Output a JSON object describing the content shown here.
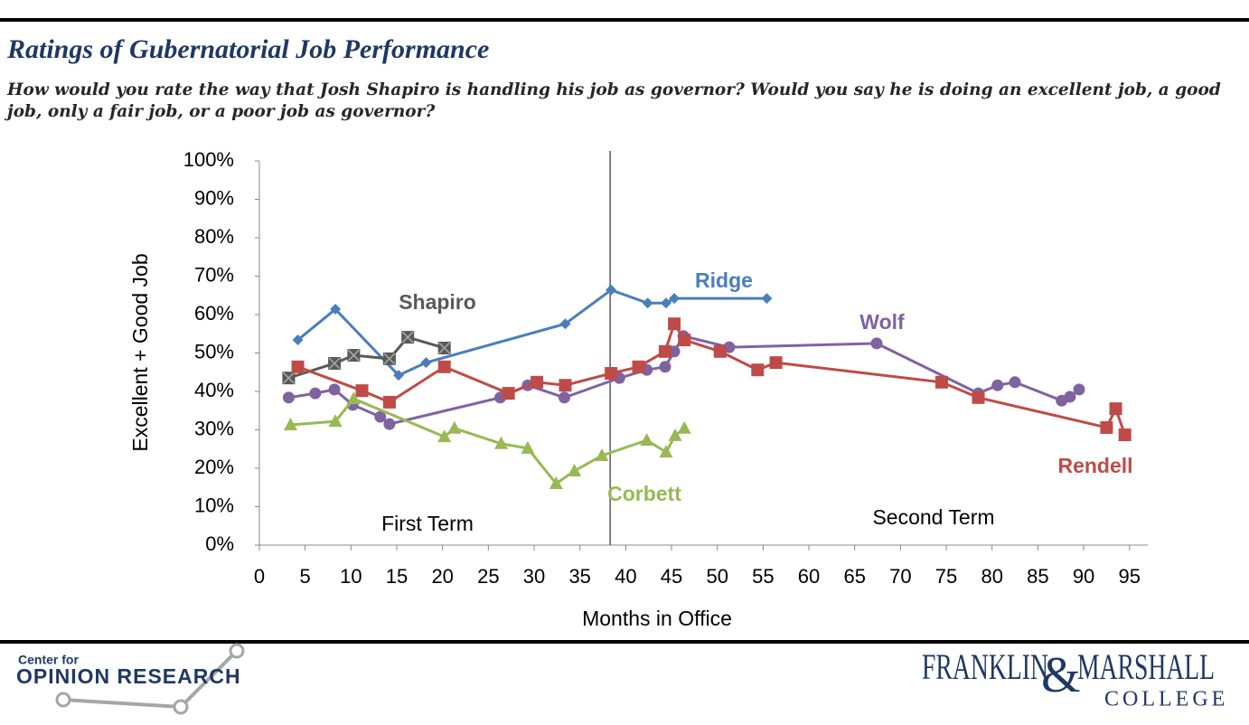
{
  "chart_data": {
    "type": "line",
    "title": "Ratings of Gubernatorial Job Performance",
    "subtitle": "How would you rate the way that Josh Shapiro is handling his job as governor? Would you say he is doing an excellent job, a good job, only a fair job, or a poor job as governor?",
    "x_label": "Months in Office",
    "y_label": "Excellent + Good Job",
    "xlim": [
      0,
      97
    ],
    "xticks": [
      0,
      5,
      10,
      15,
      20,
      25,
      30,
      35,
      40,
      45,
      50,
      55,
      60,
      65,
      70,
      75,
      80,
      85,
      90,
      95
    ],
    "ylim": [
      0,
      100
    ],
    "yticks": [
      {
        "value": 0,
        "label": "0%"
      },
      {
        "value": 10,
        "label": "10%"
      },
      {
        "value": 20,
        "label": "20%"
      },
      {
        "value": 30,
        "label": "30%"
      },
      {
        "value": 40,
        "label": "40%"
      },
      {
        "value": 50,
        "label": "50%"
      },
      {
        "value": 60,
        "label": "60%"
      },
      {
        "value": 70,
        "label": "70%"
      },
      {
        "value": 80,
        "label": "80%"
      },
      {
        "value": 90,
        "label": "90%"
      },
      {
        "value": 100,
        "label": "100%"
      }
    ],
    "grid": false,
    "divider_x": 38.3,
    "annotations": [
      "First Term",
      "Second Term"
    ],
    "series": [
      {
        "name": "Ridge",
        "color": "#4a7ebb",
        "marker": "diamond",
        "x": [
          4.2,
          8.3,
          15.2,
          18.2,
          33.4,
          38.4,
          42.4,
          44.4,
          45.3,
          55.4
        ],
        "values": [
          53.4,
          61.4,
          44.2,
          47.5,
          57.6,
          66.4,
          63,
          63,
          64.2,
          64.2
        ]
      },
      {
        "name": "Shapiro",
        "color": "#595959",
        "marker": "square-x",
        "x": [
          3.2,
          8.2,
          10.3,
          14.2,
          16.2,
          20.2
        ],
        "values": [
          43.5,
          47.3,
          49.4,
          48.5,
          54.1,
          51.3
        ]
      },
      {
        "name": "Wolf",
        "color": "#7f63a1",
        "marker": "circle",
        "x": [
          3.2,
          6.1,
          8.2,
          10.2,
          13.2,
          14.2,
          26.3,
          29.3,
          33.3,
          39.3,
          42.3,
          44.3,
          45.3,
          46.3,
          51.3,
          67.4,
          78.5,
          80.6,
          82.5,
          87.6,
          88.5,
          89.5
        ],
        "values": [
          38.4,
          39.5,
          40.5,
          36.5,
          33.4,
          31.5,
          38.4,
          41.6,
          38.4,
          43.5,
          45.6,
          46.4,
          50.4,
          54.4,
          51.5,
          52.5,
          39.5,
          41.6,
          42.4,
          37.6,
          38.6,
          40.5
        ]
      },
      {
        "name": "Rendell",
        "color": "#be4b48",
        "marker": "square",
        "x": [
          4.2,
          11.2,
          14.2,
          20.2,
          27.2,
          30.3,
          33.4,
          38.4,
          41.4,
          44.3,
          45.3,
          46.4,
          50.3,
          54.4,
          56.4,
          74.5,
          78.5,
          92.5,
          93.5,
          94.5
        ],
        "values": [
          46.4,
          40.2,
          37.2,
          46.4,
          39.5,
          42.4,
          41.6,
          44.7,
          46.4,
          50.4,
          57.6,
          53.4,
          50.4,
          45.6,
          47.5,
          42.4,
          38.4,
          30.6,
          35.5,
          28.7
        ]
      },
      {
        "name": "Corbett",
        "color": "#98b954",
        "marker": "triangle",
        "x": [
          3.4,
          8.3,
          10.3,
          20.2,
          21.3,
          26.4,
          29.3,
          32.4,
          34.4,
          37.4,
          42.3,
          44.4,
          45.4,
          46.4
        ],
        "values": [
          31.3,
          32.2,
          38.1,
          28.2,
          30.4,
          26.4,
          25.2,
          16.0,
          19.3,
          23.3,
          27.3,
          24.2,
          28.5,
          30.4
        ]
      }
    ]
  },
  "footer": {
    "center_small": "Center for",
    "center_large": "OPINION RESEARCH",
    "college_left": "FRANKLIN",
    "college_amp": "&",
    "college_right": "MARSHALL",
    "college_bottom": "COLLEGE"
  }
}
